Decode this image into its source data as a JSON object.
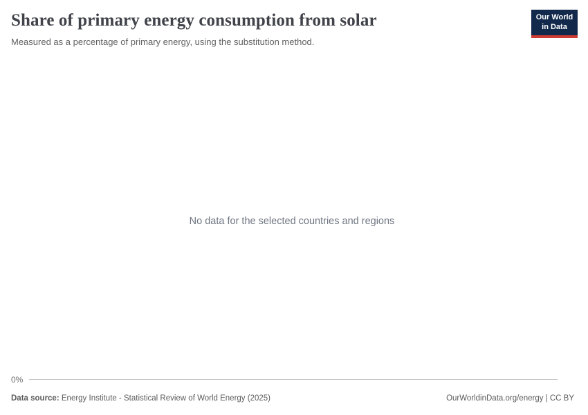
{
  "header": {
    "title": "Share of primary energy consumption from solar",
    "subtitle": "Measured as a percentage of primary energy, using the substitution method.",
    "logo": {
      "line1": "Our World",
      "line2": "in Data"
    }
  },
  "chart": {
    "no_data_message": "No data for the selected countries and regions",
    "axis": {
      "tick_label": "0%"
    }
  },
  "chart_data": {
    "type": "line",
    "title": "Share of primary energy consumption from solar",
    "subtitle": "Measured as a percentage of primary energy, using the substitution method.",
    "series": [],
    "categories": [],
    "y_ticks": [
      "0%"
    ],
    "grid": false,
    "legend_position": "none",
    "empty_state_message": "No data for the selected countries and regions"
  },
  "footer": {
    "source_label": "Data source:",
    "source_value": "Energy Institute - Statistical Review of World Energy (2025)",
    "attribution": "OurWorldinData.org/energy | CC BY"
  },
  "colors": {
    "logo_background": "#12294b",
    "logo_bar": "#cf3b32",
    "title_text": "#404349",
    "subtitle_text": "#616161",
    "no_data_text": "#6e7581",
    "axis_label_text": "#6e6e6e",
    "axis_line": "#bdbdbd",
    "footer_text": "#5b5b5b"
  }
}
